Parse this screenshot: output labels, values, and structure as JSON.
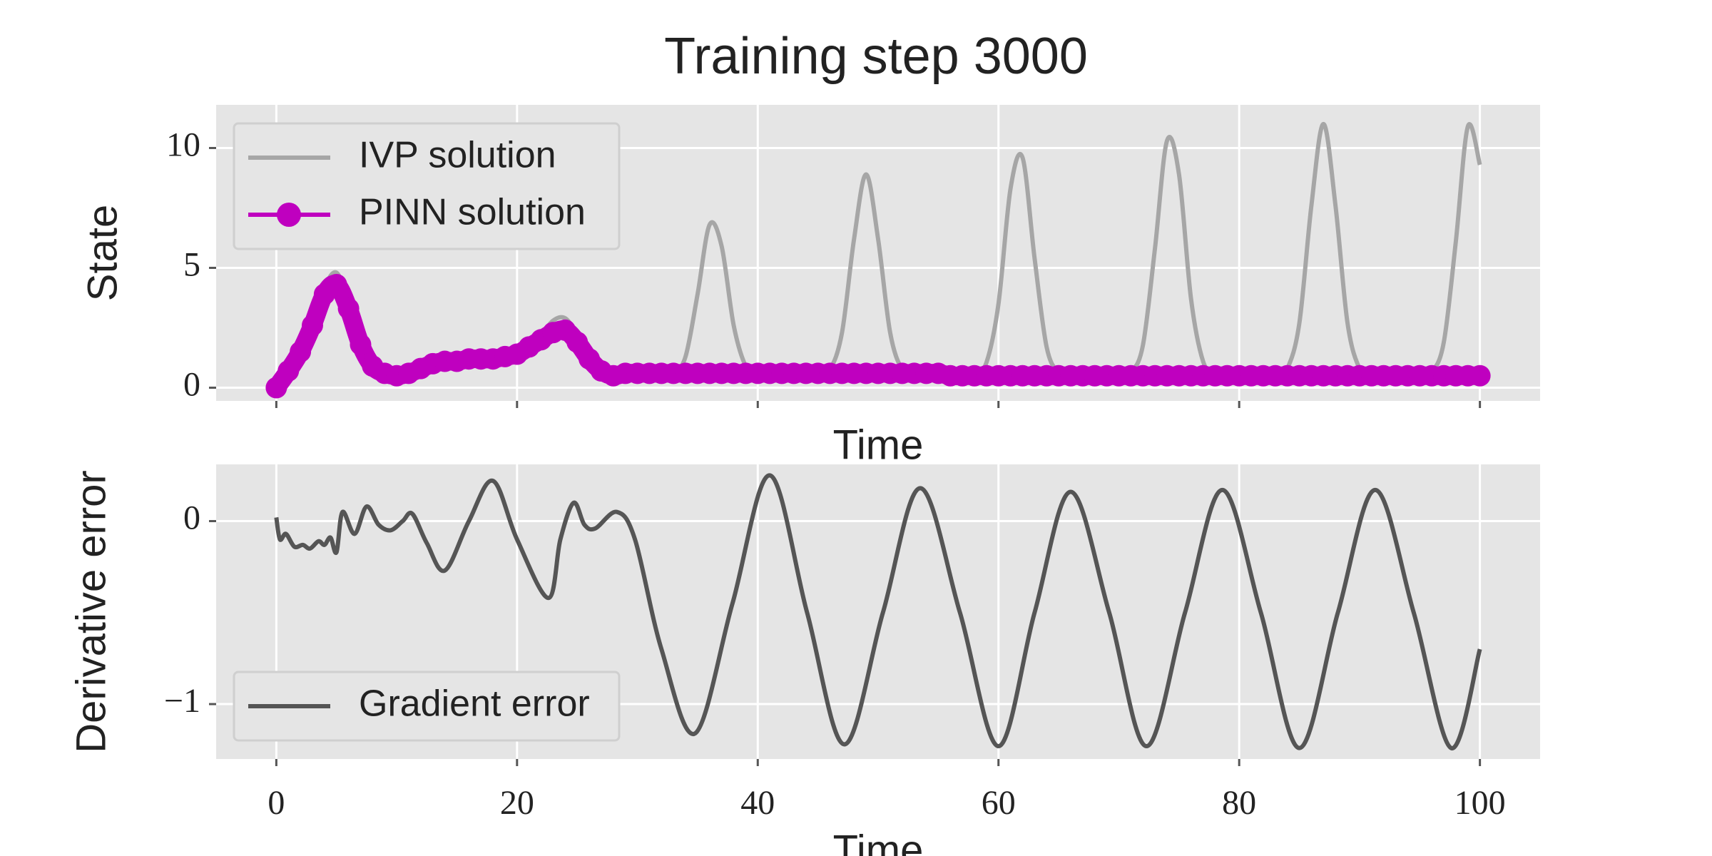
{
  "chart_data": [
    {
      "type": "line",
      "title": "Training step 3000",
      "xlabel": "Time",
      "ylabel": "State",
      "x": [
        0,
        1,
        2,
        3,
        4,
        5,
        6,
        7,
        8,
        9,
        10,
        11,
        12,
        13,
        14,
        15,
        16,
        17,
        18,
        19,
        20,
        21,
        22,
        23,
        24,
        25,
        26,
        27,
        28,
        29,
        30,
        31,
        32,
        33,
        34,
        35,
        36,
        37,
        38,
        39,
        40,
        41,
        42,
        43,
        44,
        45,
        46,
        47,
        48,
        49,
        50,
        51,
        52,
        53,
        54,
        55,
        56,
        57,
        58,
        59,
        60,
        61,
        62,
        63,
        64,
        65,
        66,
        67,
        68,
        69,
        70,
        71,
        72,
        73,
        74,
        75,
        76,
        77,
        78,
        79,
        80,
        81,
        82,
        83,
        84,
        85,
        86,
        87,
        88,
        89,
        90,
        91,
        92,
        93,
        94,
        95,
        96,
        97,
        98,
        99,
        100
      ],
      "series": [
        {
          "name": "IVP solution",
          "color": "#a6a6a6",
          "marker": false,
          "values": [
            0,
            0.8,
            1.6,
            2.8,
            4.2,
            4.8,
            3.6,
            2.0,
            1.0,
            0.6,
            0.5,
            0.6,
            0.8,
            1.0,
            1.1,
            1.1,
            1.2,
            1.2,
            1.2,
            1.3,
            1.4,
            1.7,
            2.2,
            2.8,
            2.9,
            2.2,
            1.2,
            0.7,
            0.5,
            0.5,
            0.5,
            0.5,
            0.5,
            0.6,
            1.3,
            3.9,
            6.8,
            5.9,
            2.6,
            0.9,
            0.5,
            0.5,
            0.5,
            0.5,
            0.5,
            0.5,
            0.75,
            2.3,
            6.2,
            8.9,
            6.2,
            2.3,
            0.75,
            0.5,
            0.5,
            0.5,
            0.5,
            0.5,
            0.55,
            1.05,
            3.5,
            8.3,
            9.6,
            5.4,
            1.7,
            0.63,
            0.5,
            0.5,
            0.5,
            0.5,
            0.5,
            0.64,
            1.77,
            5.8,
            10.3,
            8.9,
            3.7,
            1.1,
            0.55,
            0.5,
            0.5,
            0.5,
            0.5,
            0.5,
            0.8,
            2.7,
            7.6,
            11.0,
            7.6,
            2.7,
            0.8,
            0.5,
            0.5,
            0.5,
            0.5,
            0.5,
            0.65,
            1.9,
            6.1,
            10.9,
            9.3
          ]
        },
        {
          "name": "PINN solution",
          "color": "#bf00bf",
          "marker": true,
          "values": [
            0,
            0.7,
            1.5,
            2.6,
            3.9,
            4.3,
            3.3,
            1.8,
            0.9,
            0.6,
            0.5,
            0.6,
            0.8,
            1.0,
            1.1,
            1.1,
            1.2,
            1.2,
            1.2,
            1.3,
            1.4,
            1.7,
            2.0,
            2.3,
            2.4,
            1.9,
            1.2,
            0.7,
            0.5,
            0.6,
            0.6,
            0.6,
            0.6,
            0.6,
            0.6,
            0.6,
            0.6,
            0.6,
            0.6,
            0.6,
            0.6,
            0.6,
            0.6,
            0.6,
            0.6,
            0.6,
            0.6,
            0.6,
            0.6,
            0.6,
            0.6,
            0.6,
            0.6,
            0.6,
            0.6,
            0.6,
            0.5,
            0.5,
            0.5,
            0.5,
            0.5,
            0.5,
            0.5,
            0.5,
            0.5,
            0.5,
            0.5,
            0.5,
            0.5,
            0.5,
            0.5,
            0.5,
            0.5,
            0.5,
            0.5,
            0.5,
            0.5,
            0.5,
            0.5,
            0.5,
            0.5,
            0.5,
            0.5,
            0.5,
            0.5,
            0.5,
            0.5,
            0.5,
            0.5,
            0.5,
            0.5,
            0.5,
            0.5,
            0.5,
            0.5,
            0.5,
            0.5,
            0.5,
            0.5,
            0.5,
            0.5
          ]
        }
      ],
      "xlim": [
        -5,
        105
      ],
      "ylim": [
        -0.55,
        11.8
      ],
      "xticks": [
        0,
        20,
        40,
        60,
        80,
        100
      ],
      "xticklabels": false,
      "yticks": [
        0,
        5,
        10
      ],
      "grid": true,
      "legend": "upper left"
    },
    {
      "type": "line",
      "xlabel": "Time",
      "ylabel": "Derivative error",
      "x": [
        0,
        0.3,
        0.8,
        1.5,
        2.2,
        2.8,
        3.5,
        4,
        4.5,
        5,
        5.5,
        6.5,
        7.5,
        8.5,
        9.5,
        10.5,
        11.3,
        12.5,
        14,
        16,
        18,
        20,
        22.6,
        23.6,
        24.7,
        25.6,
        26.5,
        28.3,
        29.8,
        32,
        34.8,
        37.9,
        41,
        44.1,
        47.2,
        50.4,
        53.5,
        56.8,
        60,
        63,
        66,
        69.2,
        72.3,
        75.5,
        78.6,
        81.8,
        85,
        88.2,
        91.3,
        94.5,
        97.6,
        100
      ],
      "series": [
        {
          "name": "Gradient error",
          "color": "#555555",
          "marker": false,
          "values": [
            0.02,
            -0.1,
            -0.07,
            -0.14,
            -0.13,
            -0.15,
            -0.11,
            -0.13,
            -0.09,
            -0.17,
            0.05,
            -0.07,
            0.08,
            -0.02,
            -0.05,
            0.0,
            0.04,
            -0.12,
            -0.27,
            0.0,
            0.22,
            -0.1,
            -0.42,
            -0.1,
            0.1,
            -0.02,
            -0.04,
            0.05,
            -0.1,
            -0.7,
            -1.16,
            -0.45,
            0.25,
            -0.5,
            -1.22,
            -0.5,
            0.18,
            -0.5,
            -1.23,
            -0.5,
            0.16,
            -0.5,
            -1.23,
            -0.5,
            0.17,
            -0.5,
            -1.24,
            -0.5,
            0.17,
            -0.5,
            -1.24,
            -0.7
          ]
        }
      ],
      "xlim": [
        -5,
        105
      ],
      "ylim": [
        -1.3,
        0.31
      ],
      "xticks": [
        0,
        20,
        40,
        60,
        80,
        100
      ],
      "yticks": [
        {
          "value": -1,
          "label": "−1"
        },
        0
      ],
      "grid": true,
      "legend": "lower left"
    }
  ]
}
